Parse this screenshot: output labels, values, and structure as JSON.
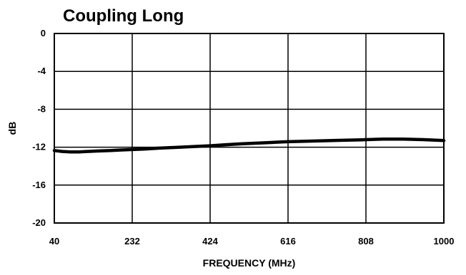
{
  "chart_data": {
    "type": "line",
    "title": "Coupling Long",
    "xlabel": "FREQUENCY (MHz)",
    "ylabel": "dB",
    "xlim": [
      40,
      1000
    ],
    "ylim": [
      -20,
      0
    ],
    "x_ticks": [
      40,
      232,
      424,
      616,
      808,
      1000
    ],
    "y_ticks": [
      0,
      -4,
      -8,
      -12,
      -16,
      -20
    ],
    "grid": true,
    "legend": "none",
    "series": [
      {
        "color": "#000000",
        "x": [
          40,
          60,
          80,
          100,
          120,
          150,
          180,
          200,
          232,
          260,
          300,
          350,
          400,
          424,
          460,
          500,
          550,
          600,
          616,
          650,
          700,
          750,
          800,
          808,
          850,
          900,
          950,
          1000
        ],
        "y": [
          -12.35,
          -12.45,
          -12.5,
          -12.5,
          -12.45,
          -12.4,
          -12.35,
          -12.3,
          -12.25,
          -12.2,
          -12.1,
          -12.0,
          -11.9,
          -11.85,
          -11.75,
          -11.65,
          -11.55,
          -11.45,
          -11.42,
          -11.38,
          -11.32,
          -11.27,
          -11.22,
          -11.2,
          -11.15,
          -11.15,
          -11.2,
          -11.3
        ]
      }
    ]
  }
}
